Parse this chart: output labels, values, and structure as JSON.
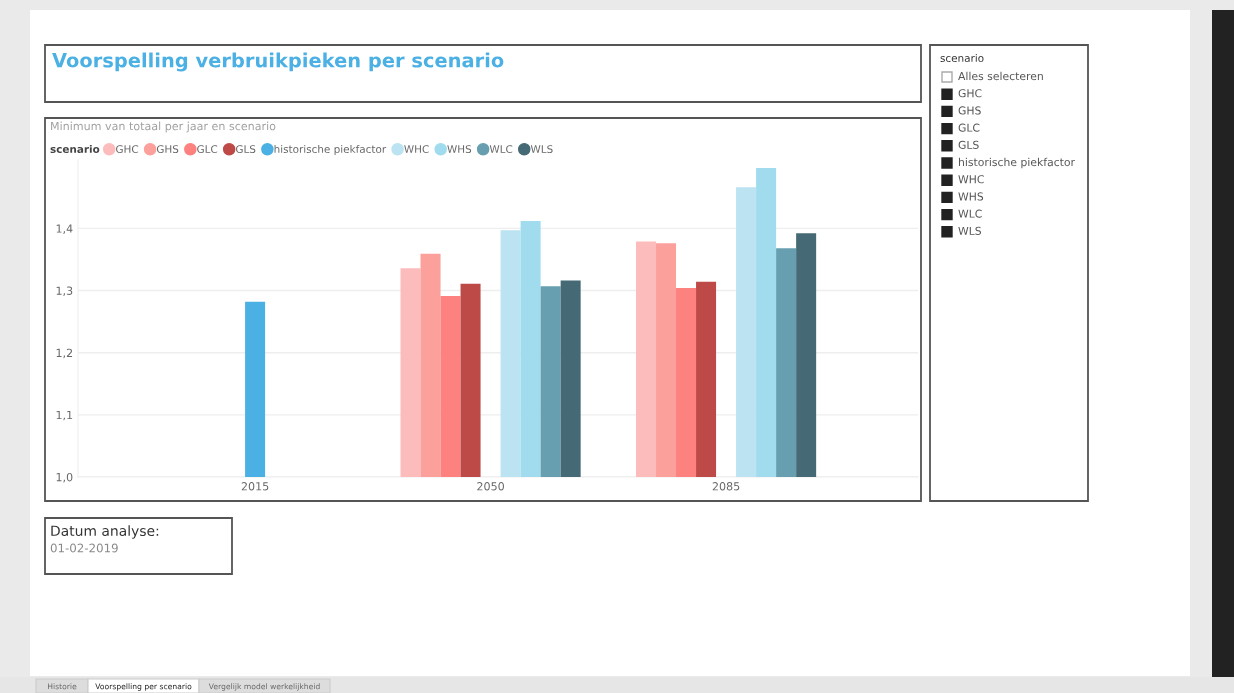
{
  "chart_data": [
    {
      "type": "bar",
      "title": "Voorspelling verbruikpieken per scenario",
      "subtitle": "Minimum van totaal per jaar en scenario",
      "legend_title": "scenario",
      "categories": [
        "2015",
        "2050",
        "2085"
      ],
      "series": [
        {
          "name": "GHC",
          "color": "#fdbcbc",
          "values": [
            null,
            1.336,
            1.379
          ]
        },
        {
          "name": "GHS",
          "color": "#fca09c",
          "values": [
            null,
            1.359,
            1.376
          ]
        },
        {
          "name": "GLC",
          "color": "#fd817e",
          "values": [
            null,
            1.291,
            1.304
          ]
        },
        {
          "name": "GLS",
          "color": "#be4a47",
          "values": [
            null,
            1.311,
            1.314
          ]
        },
        {
          "name": "historische piekfactor",
          "color": "#4bb0e3",
          "values": [
            1.282,
            null,
            null
          ]
        },
        {
          "name": "WHC",
          "color": "#bbe3f1",
          "values": [
            null,
            1.397,
            1.466
          ]
        },
        {
          "name": "WHS",
          "color": "#a1dbee",
          "values": [
            null,
            1.412,
            1.497
          ]
        },
        {
          "name": "WLC",
          "color": "#679fb0",
          "values": [
            null,
            1.307,
            1.368
          ]
        },
        {
          "name": "WLS",
          "color": "#456a76",
          "values": [
            null,
            1.316,
            1.392
          ]
        }
      ],
      "ylim": [
        1.0,
        1.51
      ],
      "yticks": [
        {
          "value": 1.0,
          "label": "1,0"
        },
        {
          "value": 1.1,
          "label": "1,1"
        },
        {
          "value": 1.2,
          "label": "1,2"
        },
        {
          "value": 1.3,
          "label": "1,3"
        },
        {
          "value": 1.4,
          "label": "1,4"
        }
      ],
      "grid": "y",
      "legend": "top left",
      "marker": "circle",
      "annotations": [
        "Datum analyse:",
        "01-02-2019"
      ]
    },
    {
      "type": "other",
      "title": "scenario",
      "annotations": [
        "Alles selecteren",
        "GHC",
        "GHS",
        "GLC",
        "GLS",
        "historische piekfactor",
        "WHC",
        "WHS",
        "WLC",
        "WLS"
      ]
    },
    {
      "type": "other",
      "annotations": [
        "Historie",
        "Voorspelling per scenario",
        "Vergelijk model werkelijkheid"
      ]
    }
  ]
}
